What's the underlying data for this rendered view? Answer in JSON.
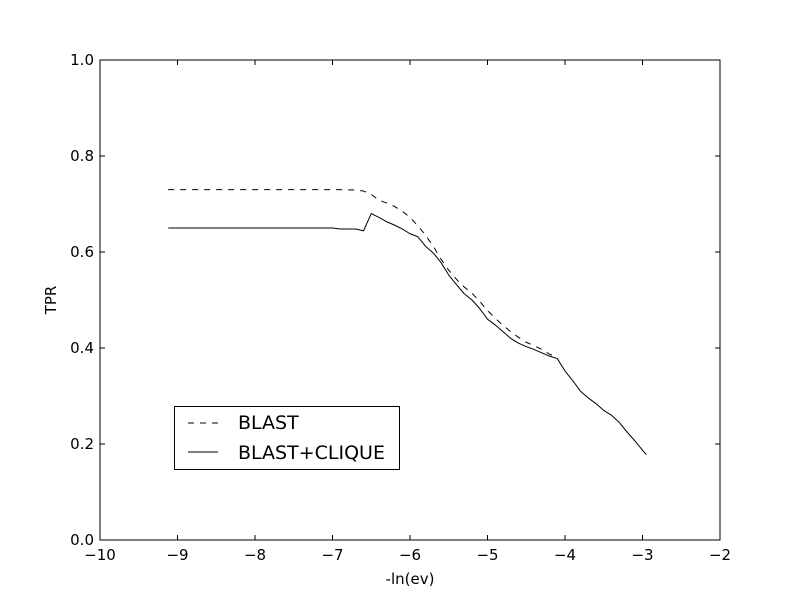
{
  "chart_data": {
    "type": "line",
    "title": "",
    "xlabel": "-ln(ev)",
    "ylabel": "TPR",
    "xlim": [
      -10,
      -2
    ],
    "ylim": [
      0.0,
      1.0
    ],
    "xticks": [
      -10,
      -9,
      -8,
      -7,
      -6,
      -5,
      -4,
      -3,
      -2
    ],
    "xtick_labels": [
      "−10",
      "−9",
      "−8",
      "−7",
      "−6",
      "−5",
      "−4",
      "−3",
      "−2"
    ],
    "yticks": [
      0.0,
      0.2,
      0.4,
      0.6,
      0.8,
      1.0
    ],
    "ytick_labels": [
      "0.0",
      "0.2",
      "0.4",
      "0.6",
      "0.8",
      "1.0"
    ],
    "grid": false,
    "legend_position": "lower-left",
    "series": [
      {
        "name": "BLAST",
        "style": "dashed",
        "color": "#000000",
        "x": [
          -9.12,
          -8.5,
          -8.0,
          -7.5,
          -7.0,
          -6.7,
          -6.6,
          -6.5,
          -6.4,
          -6.3,
          -6.2,
          -6.1,
          -6.0,
          -5.9,
          -5.8,
          -5.7,
          -5.6,
          -5.5,
          -5.4,
          -5.3,
          -5.2,
          -5.1,
          -5.0,
          -4.9,
          -4.8,
          -4.7,
          -4.6,
          -4.5,
          -4.4,
          -4.3,
          -4.2,
          -4.13
        ],
        "y": [
          0.73,
          0.73,
          0.73,
          0.73,
          0.73,
          0.729,
          0.727,
          0.72,
          0.708,
          0.702,
          0.695,
          0.685,
          0.672,
          0.655,
          0.635,
          0.612,
          0.585,
          0.562,
          0.543,
          0.527,
          0.514,
          0.497,
          0.478,
          0.462,
          0.447,
          0.434,
          0.422,
          0.412,
          0.405,
          0.397,
          0.387,
          0.383
        ]
      },
      {
        "name": "BLAST+CLIQUE",
        "style": "solid",
        "color": "#000000",
        "x": [
          -9.12,
          -8.5,
          -8.0,
          -7.5,
          -7.0,
          -6.9,
          -6.8,
          -6.7,
          -6.6,
          -6.5,
          -6.4,
          -6.3,
          -6.2,
          -6.1,
          -6.0,
          -5.9,
          -5.8,
          -5.7,
          -5.6,
          -5.5,
          -5.4,
          -5.3,
          -5.2,
          -5.1,
          -5.0,
          -4.9,
          -4.8,
          -4.7,
          -4.6,
          -4.5,
          -4.4,
          -4.3,
          -4.2,
          -4.1,
          -4.0,
          -3.9,
          -3.8,
          -3.7,
          -3.6,
          -3.5,
          -3.4,
          -3.3,
          -3.2,
          -3.1,
          -3.0,
          -2.95
        ],
        "y": [
          0.65,
          0.65,
          0.65,
          0.65,
          0.65,
          0.648,
          0.648,
          0.648,
          0.644,
          0.68,
          0.672,
          0.663,
          0.656,
          0.648,
          0.638,
          0.632,
          0.612,
          0.598,
          0.578,
          0.552,
          0.532,
          0.513,
          0.5,
          0.482,
          0.46,
          0.448,
          0.434,
          0.42,
          0.41,
          0.403,
          0.397,
          0.39,
          0.383,
          0.378,
          0.352,
          0.332,
          0.31,
          0.296,
          0.284,
          0.27,
          0.26,
          0.245,
          0.225,
          0.207,
          0.187,
          0.178
        ]
      }
    ]
  }
}
